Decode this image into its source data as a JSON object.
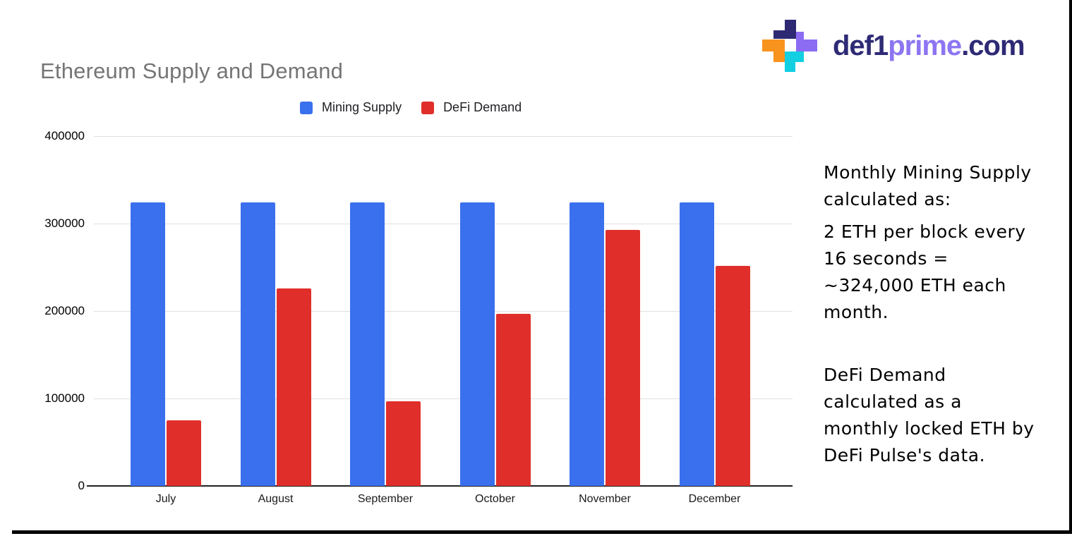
{
  "logo": {
    "segments": [
      {
        "text": "def1",
        "color": "#2e2a75"
      },
      {
        "text": "prime",
        "color": "#8d75f2"
      },
      {
        "text": ".com",
        "color": "#2e2a75"
      }
    ],
    "mark": {
      "navy": "#2d2a73",
      "purple": "#8c6cf3",
      "orange": "#f8941d",
      "cyan": "#13cfe2"
    }
  },
  "chart_data": {
    "type": "bar",
    "title": "Ethereum Supply and Demand",
    "title_color": "#757575",
    "categories": [
      "July",
      "August",
      "September",
      "October",
      "November",
      "December"
    ],
    "series": [
      {
        "name": "Mining Supply",
        "color": "#3a70ee",
        "values": [
          324000,
          324000,
          324000,
          324000,
          324000,
          324000
        ]
      },
      {
        "name": "DeFi Demand",
        "color": "#e02f2a",
        "values": [
          75000,
          226000,
          97000,
          197000,
          293000,
          252000
        ]
      }
    ],
    "xlabel": "",
    "ylabel": "",
    "ylim": [
      0,
      400000
    ],
    "yticks": [
      0,
      100000,
      200000,
      300000,
      400000
    ],
    "ytick_labels": [
      "0",
      "100000",
      "200000",
      "300000",
      "400000"
    ],
    "grid": true,
    "legend_position": "top-center"
  },
  "annotations": {
    "blocks": [
      {
        "lines": [
          "Monthly Mining Supply",
          "calculated as:"
        ]
      },
      {
        "lines": [
          "2 ETH per block every",
          "16 seconds =",
          "~324,000 ETH each",
          "month."
        ]
      },
      {
        "lines": [
          "DeFi Demand",
          "calculated as a",
          "monthly locked ETH by",
          "DeFi Pulse's data."
        ]
      }
    ]
  }
}
